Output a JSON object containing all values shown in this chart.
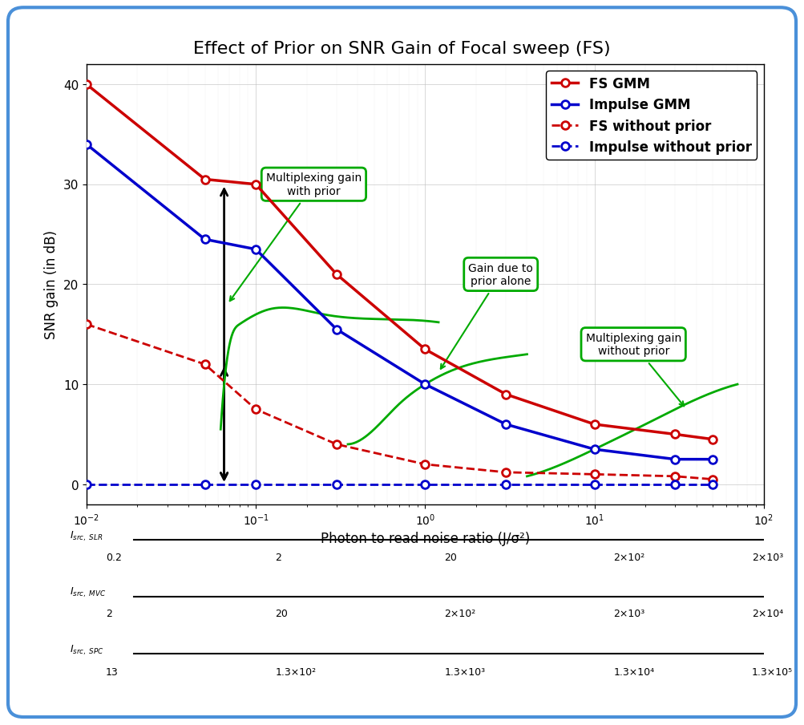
{
  "title": "Effect of Prior on SNR Gain of Focal sweep (FS)",
  "xlabel": "Photon to read noise ratio (J/σ²)",
  "ylabel": "SNR gain (in dB)",
  "background_color": "#ffffff",
  "border_color": "#4a90d9",
  "fs_gmm_x": [
    0.01,
    0.05,
    0.1,
    0.3,
    1.0,
    3.0,
    10.0,
    30.0,
    50.0
  ],
  "fs_gmm_y": [
    40.0,
    30.5,
    30.0,
    21.0,
    13.5,
    9.0,
    6.0,
    5.0,
    4.5
  ],
  "impulse_gmm_x": [
    0.01,
    0.05,
    0.1,
    0.3,
    1.0,
    3.0,
    10.0,
    30.0,
    50.0
  ],
  "impulse_gmm_y": [
    34.0,
    24.5,
    23.5,
    15.5,
    10.0,
    6.0,
    3.5,
    2.5,
    2.5
  ],
  "fs_noprior_x": [
    0.01,
    0.05,
    0.1,
    0.3,
    1.0,
    3.0,
    10.0,
    30.0,
    50.0
  ],
  "fs_noprior_y": [
    16.0,
    12.0,
    7.5,
    4.0,
    2.0,
    1.2,
    1.0,
    0.8,
    0.5
  ],
  "impulse_noprior_x": [
    0.01,
    0.05,
    0.1,
    0.3,
    1.0,
    3.0,
    10.0,
    30.0,
    50.0
  ],
  "impulse_noprior_y": [
    0.0,
    0.0,
    0.0,
    0.0,
    0.0,
    0.0,
    0.0,
    0.0,
    0.0
  ],
  "fs_gmm_color": "#cc0000",
  "impulse_gmm_color": "#0000cc",
  "fs_noprior_color": "#cc0000",
  "impulse_noprior_color": "#0000cc",
  "green_color": "#00aa00",
  "slr_labels": [
    "0.2",
    "2",
    "20",
    "2×10²",
    "2×10³"
  ],
  "mvc_labels": [
    "2",
    "20",
    "2×10²",
    "2×10³",
    "2×10⁴"
  ],
  "spc_labels": [
    "13",
    "1.3×10²",
    "1.3×10³",
    "1.3×10⁴",
    "1.3×10⁵"
  ]
}
